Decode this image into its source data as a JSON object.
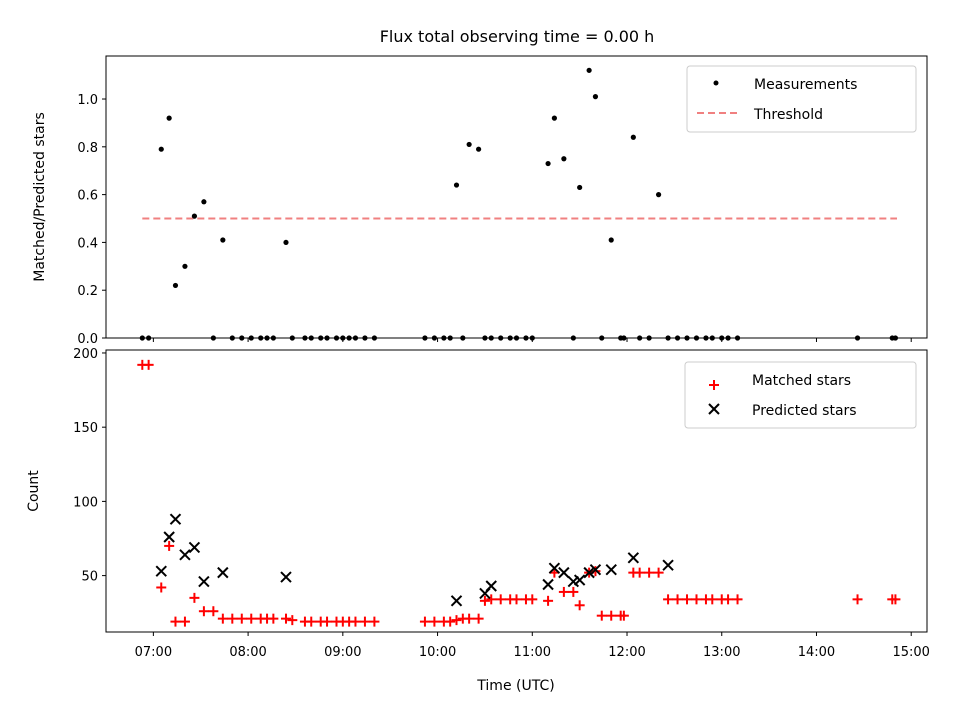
{
  "chart_data": {
    "type": "scatter",
    "title": "Flux total observing time = 0.00 h",
    "xlabel": "Time (UTC)",
    "xlim": [
      "06:30",
      "15:10"
    ],
    "xticks": [
      "07:00",
      "08:00",
      "09:00",
      "10:00",
      "11:00",
      "12:00",
      "13:00",
      "14:00",
      "15:00"
    ],
    "top": {
      "ylabel": "Matched/Predicted stars",
      "ylim": [
        0,
        1.18
      ],
      "yticks": [
        "0.0",
        "0.2",
        "0.4",
        "0.6",
        "0.8",
        "1.0"
      ],
      "legend_position": "top-right",
      "threshold": {
        "name": "Threshold",
        "value": 0.5,
        "x_range": [
          "06:53",
          "14:51"
        ],
        "color": "#f08080"
      },
      "series": [
        {
          "name": "Measurements",
          "color": "#000000",
          "marker": "dot",
          "x": [
            "06:53",
            "06:57",
            "07:05",
            "07:10",
            "07:14",
            "07:20",
            "07:26",
            "07:32",
            "07:38",
            "07:44",
            "07:50",
            "07:56",
            "08:02",
            "08:08",
            "08:12",
            "08:16",
            "08:24",
            "08:28",
            "08:36",
            "08:40",
            "08:46",
            "08:50",
            "08:56",
            "09:00",
            "09:04",
            "09:08",
            "09:14",
            "09:20",
            "09:52",
            "09:58",
            "10:04",
            "10:08",
            "10:12",
            "10:16",
            "10:20",
            "10:26",
            "10:30",
            "10:34",
            "10:40",
            "10:46",
            "10:50",
            "10:56",
            "11:00",
            "11:10",
            "11:14",
            "11:20",
            "11:26",
            "11:30",
            "11:36",
            "11:40",
            "11:44",
            "11:50",
            "11:56",
            "11:58",
            "12:04",
            "12:08",
            "12:14",
            "12:20",
            "12:26",
            "12:32",
            "12:38",
            "12:44",
            "12:50",
            "12:54",
            "13:00",
            "13:04",
            "13:10",
            "14:26",
            "14:48",
            "14:50"
          ],
          "y": [
            0,
            0,
            0.79,
            0.92,
            0.22,
            0.3,
            0.51,
            0.57,
            0,
            0.41,
            0,
            0,
            0,
            0,
            0,
            0,
            0.4,
            0,
            0,
            0,
            0,
            0,
            0,
            0,
            0,
            0,
            0,
            0,
            0,
            0,
            0,
            0,
            0.64,
            0,
            0.81,
            0.79,
            0,
            0,
            0,
            0,
            0,
            0,
            0,
            0.73,
            0.92,
            0.75,
            0,
            0.63,
            1.12,
            1.01,
            0,
            0.41,
            0,
            0,
            0.84,
            0,
            0,
            0.6,
            0,
            0,
            0,
            0,
            0,
            0,
            0,
            0,
            0,
            0,
            0,
            0
          ]
        }
      ]
    },
    "bottom": {
      "ylabel": "Count",
      "ylim": [
        12,
        202
      ],
      "yticks": [
        "50",
        "100",
        "150",
        "200"
      ],
      "legend_position": "top-right",
      "series": [
        {
          "name": "Matched stars",
          "color": "#ff0000",
          "marker": "plus",
          "x": [
            "06:53",
            "06:57",
            "07:05",
            "07:10",
            "07:14",
            "07:20",
            "07:26",
            "07:32",
            "07:38",
            "07:44",
            "07:50",
            "07:56",
            "08:02",
            "08:08",
            "08:12",
            "08:16",
            "08:24",
            "08:28",
            "08:36",
            "08:40",
            "08:46",
            "08:50",
            "08:56",
            "09:00",
            "09:04",
            "09:08",
            "09:14",
            "09:20",
            "09:52",
            "09:58",
            "10:04",
            "10:08",
            "10:12",
            "10:16",
            "10:20",
            "10:26",
            "10:30",
            "10:34",
            "10:40",
            "10:46",
            "10:50",
            "10:56",
            "11:00",
            "11:10",
            "11:14",
            "11:20",
            "11:26",
            "11:30",
            "11:36",
            "11:40",
            "11:44",
            "11:50",
            "11:56",
            "11:58",
            "12:04",
            "12:08",
            "12:14",
            "12:20",
            "12:26",
            "12:32",
            "12:38",
            "12:44",
            "12:50",
            "12:54",
            "13:00",
            "13:04",
            "13:10",
            "14:26",
            "14:48",
            "14:50"
          ],
          "y": [
            192,
            192,
            42,
            70,
            19,
            19,
            35,
            26,
            26,
            21,
            21,
            21,
            21,
            21,
            21,
            21,
            21,
            20,
            19,
            19,
            19,
            19,
            19,
            19,
            19,
            19,
            19,
            19,
            19,
            19,
            19,
            19,
            20,
            21,
            21,
            21,
            33,
            34,
            34,
            34,
            34,
            34,
            34,
            33,
            52,
            39,
            39,
            30,
            52,
            53,
            23,
            23,
            23,
            23,
            52,
            52,
            52,
            52,
            34,
            34,
            34,
            34,
            34,
            34,
            34,
            34,
            34,
            34,
            34,
            34
          ]
        },
        {
          "name": "Predicted stars",
          "color": "#000000",
          "marker": "x",
          "x": [
            "07:05",
            "07:10",
            "07:14",
            "07:20",
            "07:26",
            "07:32",
            "07:44",
            "08:24",
            "10:12",
            "10:30",
            "10:34",
            "11:10",
            "11:14",
            "11:20",
            "11:26",
            "11:30",
            "11:36",
            "11:40",
            "11:50",
            "12:04",
            "12:26"
          ],
          "y": [
            53,
            76,
            88,
            64,
            69,
            46,
            52,
            49,
            33,
            38,
            43,
            44,
            55,
            52,
            46,
            47,
            52,
            54,
            54,
            62,
            57
          ]
        }
      ]
    }
  }
}
